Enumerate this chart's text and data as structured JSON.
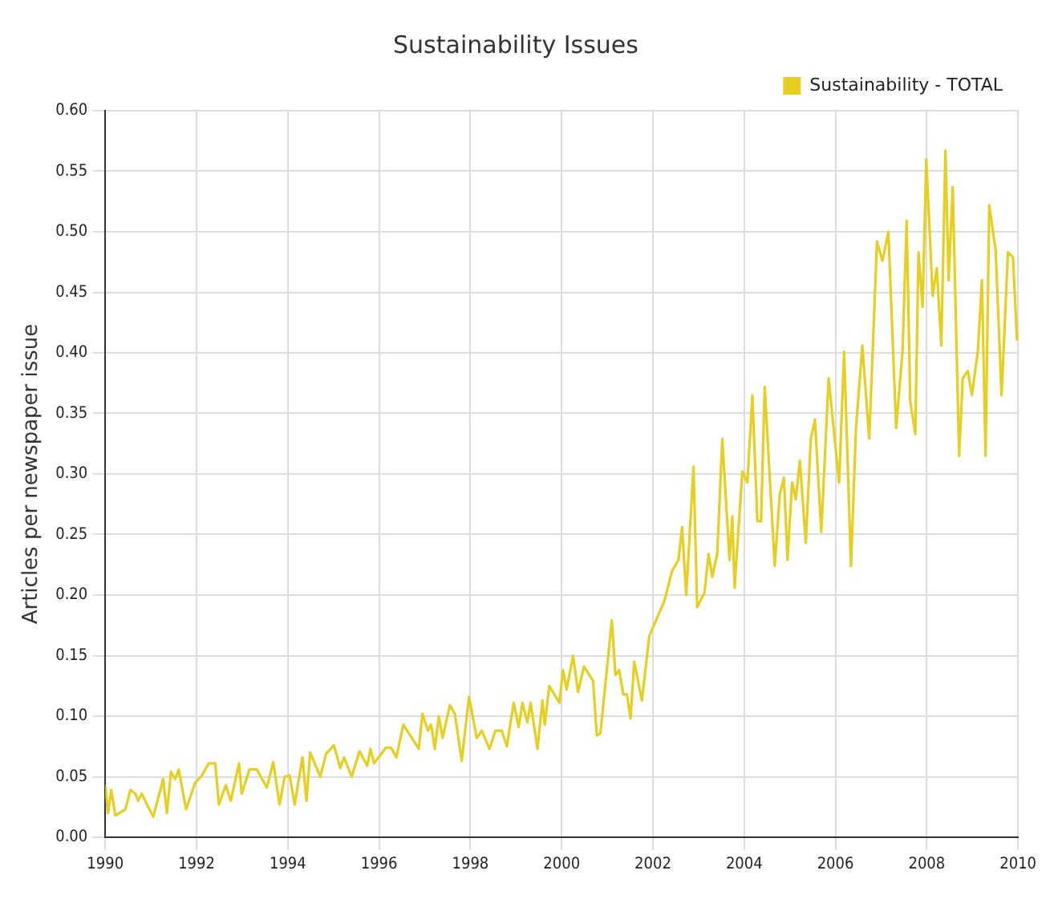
{
  "chart_data": {
    "type": "line",
    "title": "Sustainability Issues",
    "ylabel": "Articles per newspaper issue",
    "x": [
      1990.0,
      1990.06,
      1990.13,
      1990.22,
      1990.44,
      1990.55,
      1990.66,
      1990.72,
      1990.8,
      1990.94,
      1991.05,
      1991.27,
      1991.35,
      1991.44,
      1991.53,
      1991.61,
      1991.77,
      1991.97,
      1992.1,
      1992.27,
      1992.41,
      1992.49,
      1992.64,
      1992.75,
      1992.93,
      1992.99,
      1993.16,
      1993.32,
      1993.54,
      1993.68,
      1993.82,
      1993.93,
      1994.04,
      1994.15,
      1994.32,
      1994.41,
      1994.49,
      1994.71,
      1994.84,
      1995.01,
      1995.15,
      1995.23,
      1995.4,
      1995.57,
      1995.74,
      1995.81,
      1995.89,
      1996.15,
      1996.26,
      1996.38,
      1996.53,
      1996.87,
      1996.95,
      1997.07,
      1997.14,
      1997.22,
      1997.31,
      1997.39,
      1997.55,
      1997.66,
      1997.81,
      1997.97,
      1998.14,
      1998.25,
      1998.42,
      1998.55,
      1998.69,
      1998.8,
      1998.95,
      1999.06,
      1999.14,
      1999.25,
      1999.32,
      1999.47,
      1999.58,
      1999.63,
      1999.73,
      1999.95,
      2000.03,
      2000.11,
      2000.25,
      2000.36,
      2000.49,
      2000.69,
      2000.77,
      2000.85,
      2000.99,
      2001.1,
      2001.18,
      2001.26,
      2001.35,
      2001.43,
      2001.51,
      2001.59,
      2001.76,
      2001.92,
      2002.09,
      2002.25,
      2002.42,
      2002.56,
      2002.64,
      2002.73,
      2002.89,
      2002.97,
      2003.13,
      2003.22,
      2003.3,
      2003.41,
      2003.52,
      2003.68,
      2003.74,
      2003.79,
      2003.96,
      2004.07,
      2004.18,
      2004.29,
      2004.37,
      2004.45,
      2004.67,
      2004.78,
      2004.87,
      2004.95,
      2005.05,
      2005.13,
      2005.22,
      2005.35,
      2005.46,
      2005.55,
      2005.69,
      2005.85,
      2006.08,
      2006.19,
      2006.34,
      2006.45,
      2006.59,
      2006.74,
      2006.91,
      2007.03,
      2007.16,
      2007.33,
      2007.47,
      2007.56,
      2007.64,
      2007.75,
      2007.82,
      2007.91,
      2007.99,
      2008.13,
      2008.22,
      2008.32,
      2008.41,
      2008.48,
      2008.57,
      2008.71,
      2008.79,
      2008.9,
      2008.99,
      2009.12,
      2009.21,
      2009.29,
      2009.37,
      2009.51,
      2009.64,
      2009.78,
      2009.89,
      2009.98
    ],
    "series": [
      {
        "name": "Sustainability - TOTAL",
        "color": "#e6cf1e",
        "values": [
          0.043,
          0.02,
          0.039,
          0.018,
          0.023,
          0.039,
          0.036,
          0.03,
          0.036,
          0.025,
          0.017,
          0.048,
          0.02,
          0.054,
          0.048,
          0.056,
          0.023,
          0.045,
          0.05,
          0.061,
          0.061,
          0.027,
          0.043,
          0.03,
          0.061,
          0.036,
          0.056,
          0.056,
          0.041,
          0.062,
          0.027,
          0.05,
          0.051,
          0.027,
          0.066,
          0.03,
          0.07,
          0.05,
          0.069,
          0.076,
          0.057,
          0.066,
          0.05,
          0.071,
          0.059,
          0.073,
          0.061,
          0.074,
          0.074,
          0.066,
          0.093,
          0.073,
          0.102,
          0.088,
          0.093,
          0.073,
          0.1,
          0.082,
          0.109,
          0.102,
          0.063,
          0.116,
          0.082,
          0.088,
          0.073,
          0.088,
          0.088,
          0.075,
          0.111,
          0.091,
          0.111,
          0.095,
          0.111,
          0.073,
          0.113,
          0.093,
          0.125,
          0.111,
          0.138,
          0.122,
          0.15,
          0.12,
          0.141,
          0.129,
          0.084,
          0.086,
          0.138,
          0.179,
          0.134,
          0.138,
          0.118,
          0.118,
          0.098,
          0.145,
          0.113,
          0.166,
          0.181,
          0.195,
          0.22,
          0.229,
          0.256,
          0.2,
          0.306,
          0.19,
          0.202,
          0.234,
          0.215,
          0.234,
          0.329,
          0.229,
          0.265,
          0.206,
          0.302,
          0.293,
          0.365,
          0.261,
          0.261,
          0.372,
          0.224,
          0.283,
          0.297,
          0.229,
          0.293,
          0.279,
          0.311,
          0.243,
          0.329,
          0.345,
          0.252,
          0.379,
          0.293,
          0.401,
          0.224,
          0.338,
          0.406,
          0.329,
          0.492,
          0.476,
          0.5,
          0.338,
          0.401,
          0.509,
          0.36,
          0.333,
          0.483,
          0.438,
          0.56,
          0.447,
          0.47,
          0.406,
          0.567,
          0.46,
          0.537,
          0.315,
          0.379,
          0.385,
          0.365,
          0.401,
          0.46,
          0.315,
          0.522,
          0.485,
          0.365,
          0.483,
          0.479,
          0.41
        ]
      }
    ],
    "xlim": [
      1990,
      2010
    ],
    "xticks": [
      1990,
      1992,
      1994,
      1996,
      1998,
      2000,
      2002,
      2004,
      2006,
      2008,
      2010
    ],
    "ylim": [
      0,
      0.6
    ],
    "yticks": [
      {
        "value": 0,
        "label": "0.00"
      },
      {
        "value": 0.05,
        "label": "0.05"
      },
      {
        "value": 0.1,
        "label": "0.10"
      },
      {
        "value": 0.15,
        "label": "0.15"
      },
      {
        "value": 0.2,
        "label": "0.20"
      },
      {
        "value": 0.25,
        "label": "0.25"
      },
      {
        "value": 0.3,
        "label": "0.30"
      },
      {
        "value": 0.35,
        "label": "0.35"
      },
      {
        "value": 0.4,
        "label": "0.40"
      },
      {
        "value": 0.45,
        "label": "0.45"
      },
      {
        "value": 0.5,
        "label": "0.50"
      },
      {
        "value": 0.55,
        "label": "0.55"
      },
      {
        "value": 0.6,
        "label": "0.60"
      }
    ],
    "grid": true,
    "legend": "top right",
    "marker": "none",
    "line_style": "solid"
  }
}
